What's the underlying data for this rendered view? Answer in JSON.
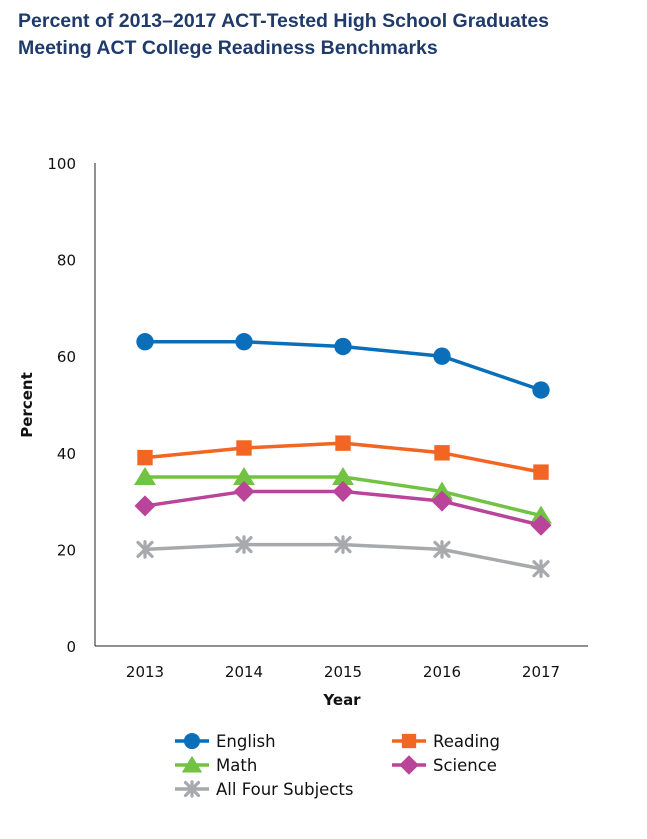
{
  "chart_data": {
    "type": "line",
    "title_line1": "Percent of 2013–2017 ACT-Tested High School Graduates",
    "title_line2": "Meeting ACT College Readiness Benchmarks",
    "xlabel": "Year",
    "ylabel": "Percent",
    "x": [
      "2013",
      "2014",
      "2015",
      "2016",
      "2017"
    ],
    "ylim": [
      0,
      100
    ],
    "yticks": [
      "0",
      "20",
      "40",
      "60",
      "80",
      "100"
    ],
    "grid": false,
    "legend_position": "bottom",
    "series": [
      {
        "name": "English",
        "values": [
          63,
          63,
          62,
          60,
          53
        ],
        "color": "#0a6fb8",
        "marker": "circle"
      },
      {
        "name": "Reading",
        "values": [
          39,
          41,
          42,
          40,
          36
        ],
        "color": "#f26522",
        "marker": "square"
      },
      {
        "name": "Math",
        "values": [
          35,
          35,
          35,
          32,
          27
        ],
        "color": "#72c243",
        "marker": "triangle"
      },
      {
        "name": "Science",
        "values": [
          29,
          32,
          32,
          30,
          25
        ],
        "color": "#b9449a",
        "marker": "diamond"
      },
      {
        "name": "All Four Subjects",
        "values": [
          20,
          21,
          21,
          20,
          16
        ],
        "color": "#a7a9ac",
        "marker": "x"
      }
    ]
  }
}
